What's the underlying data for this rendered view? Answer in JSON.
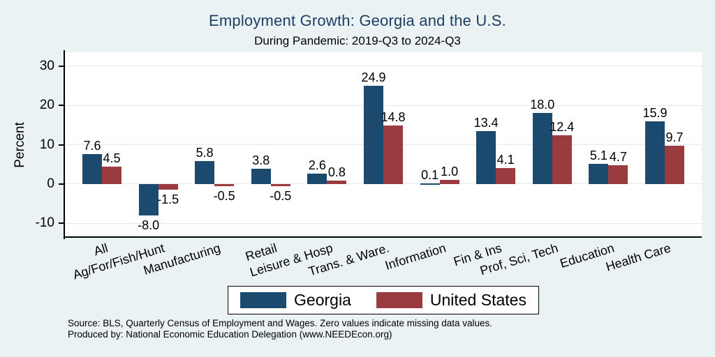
{
  "chart_data": {
    "type": "bar",
    "title": "Employment Growth: Georgia and the U.S.",
    "subtitle": "During Pandemic: 2019-Q3 to 2024-Q3",
    "ylabel": "Percent",
    "ylim": [
      -13.5,
      33.5
    ],
    "yticks": [
      30,
      20,
      10,
      0,
      -10
    ],
    "grid": true,
    "legend_position": "bottom-center",
    "value_labels_decimals": 1,
    "categories": [
      "All",
      "Ag/For/Fish/Hunt",
      "Manufacturing",
      "Retail",
      "Leisure & Hosp",
      "Trans. & Ware.",
      "Information",
      "Fin & Ins",
      "Prof, Sci, Tech",
      "Education",
      "Health Care"
    ],
    "series": [
      {
        "name": "Georgia",
        "color": "#1c4a6e",
        "values": [
          7.6,
          -8.0,
          5.8,
          3.8,
          2.6,
          24.9,
          0.1,
          13.4,
          18.0,
          5.1,
          15.9
        ]
      },
      {
        "name": "United States",
        "color": "#9a3c3f",
        "values": [
          4.5,
          -1.5,
          -0.5,
          -0.5,
          0.8,
          14.8,
          1.0,
          4.1,
          12.4,
          4.7,
          9.7
        ]
      }
    ]
  },
  "notes": {
    "source": "Source: BLS, Quarterly Census of Employment and Wages. Zero values indicate missing data values.",
    "produced_by": "Produced by: National Economic Education Delegation (www.NEEDEcon.org)"
  },
  "colors": {
    "background": "#eaf2f3",
    "plot_background": "#ffffff",
    "gridline": "#e0ebf2",
    "axis": "#000000",
    "title": "#1e3e64",
    "text": "#000000"
  }
}
